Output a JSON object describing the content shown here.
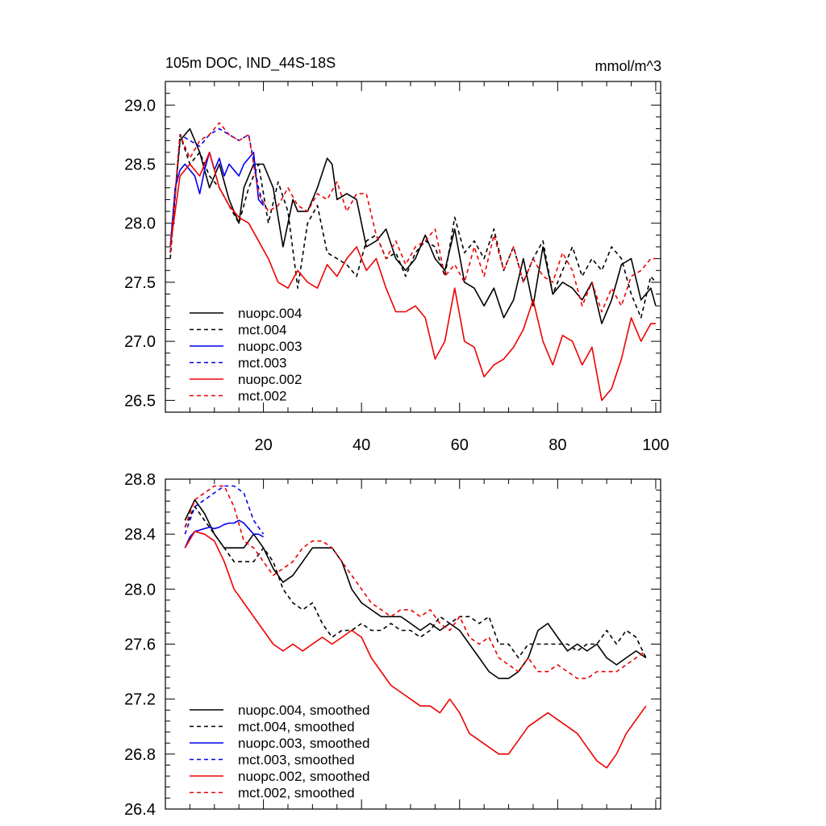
{
  "chart_data": [
    {
      "type": "line",
      "title": "105m DOC, IND_44S-18S",
      "units": "mmol/m^3",
      "xlim": [
        0,
        101
      ],
      "ylim": [
        26.4,
        29.2
      ],
      "yticks": [
        26.5,
        27.0,
        27.5,
        28.0,
        28.5,
        29.0
      ],
      "ytick_labels": [
        "26.5",
        "27.0",
        "27.5",
        "28.0",
        "28.5",
        "29.0"
      ],
      "xticks": [
        20,
        40,
        60,
        80,
        100
      ],
      "xtick_labels": [
        "20",
        "40",
        "60",
        "80",
        "100"
      ],
      "legend_position": "bottom-left",
      "series": [
        {
          "name": "nuopc.004",
          "color": "#000000",
          "dash": "solid",
          "x": [
            1,
            3,
            5,
            6,
            7,
            9,
            11,
            13,
            15,
            16,
            18,
            20,
            22,
            24,
            26,
            27,
            29,
            31,
            33,
            34,
            35,
            37,
            39,
            41,
            43,
            45,
            47,
            49,
            51,
            53,
            55,
            57,
            59,
            61,
            63,
            65,
            67,
            69,
            71,
            73,
            75,
            77,
            79,
            81,
            83,
            85,
            87,
            89,
            91,
            93,
            95,
            97,
            99,
            100
          ],
          "y": [
            27.8,
            28.7,
            28.8,
            28.7,
            28.6,
            28.3,
            28.5,
            28.2,
            28.0,
            28.3,
            28.5,
            28.5,
            28.3,
            27.8,
            28.2,
            28.1,
            28.1,
            28.3,
            28.55,
            28.5,
            28.2,
            28.25,
            28.2,
            27.8,
            27.85,
            27.95,
            27.7,
            27.6,
            27.7,
            27.9,
            27.7,
            27.6,
            27.95,
            27.5,
            27.45,
            27.3,
            27.45,
            27.2,
            27.35,
            27.7,
            27.3,
            27.8,
            27.4,
            27.5,
            27.45,
            27.35,
            27.5,
            27.15,
            27.35,
            27.65,
            27.7,
            27.35,
            27.45,
            27.3
          ]
        },
        {
          "name": "mct.004",
          "color": "#000000",
          "dash": "dashed",
          "x": [
            1,
            3,
            5,
            7,
            9,
            11,
            13,
            15,
            17,
            19,
            21,
            23,
            25,
            27,
            29,
            31,
            33,
            35,
            37,
            39,
            41,
            43,
            45,
            47,
            49,
            51,
            53,
            55,
            57,
            59,
            61,
            63,
            65,
            67,
            69,
            71,
            73,
            75,
            77,
            79,
            81,
            83,
            85,
            87,
            89,
            91,
            93,
            95,
            97,
            99,
            100
          ],
          "y": [
            27.7,
            28.75,
            28.5,
            28.6,
            28.4,
            28.3,
            28.15,
            28.0,
            28.3,
            28.5,
            28.0,
            28.35,
            28.1,
            27.45,
            28.0,
            28.15,
            27.75,
            27.7,
            27.65,
            27.55,
            27.85,
            27.9,
            27.7,
            27.75,
            27.55,
            27.75,
            27.85,
            27.8,
            27.55,
            28.05,
            27.75,
            27.85,
            27.7,
            27.95,
            27.6,
            27.8,
            27.5,
            27.7,
            27.85,
            27.4,
            27.6,
            27.8,
            27.55,
            27.7,
            27.6,
            27.8,
            27.7,
            27.4,
            27.2,
            27.55,
            27.5
          ]
        },
        {
          "name": "nuopc.003",
          "color": "#0000ee",
          "dash": "solid",
          "x": [
            1,
            2,
            3,
            4,
            5,
            6,
            7,
            8,
            9,
            10,
            11,
            12,
            13,
            14,
            15,
            16,
            17,
            18,
            19,
            20
          ],
          "y": [
            27.8,
            28.3,
            28.45,
            28.5,
            28.45,
            28.4,
            28.25,
            28.45,
            28.6,
            28.45,
            28.55,
            28.4,
            28.5,
            28.45,
            28.4,
            28.5,
            28.55,
            28.6,
            28.2,
            28.15
          ]
        },
        {
          "name": "mct.003",
          "color": "#0000ee",
          "dash": "dashed",
          "x": [
            1,
            3,
            5,
            7,
            9,
            11,
            13,
            15,
            17,
            19,
            20
          ],
          "y": [
            27.75,
            28.75,
            28.7,
            28.65,
            28.75,
            28.8,
            28.75,
            28.7,
            28.75,
            28.3,
            28.15
          ]
        },
        {
          "name": "nuopc.002",
          "color": "#ee0000",
          "dash": "solid",
          "x": [
            1,
            3,
            5,
            7,
            9,
            11,
            13,
            15,
            17,
            19,
            21,
            23,
            25,
            27,
            29,
            31,
            33,
            35,
            37,
            39,
            41,
            43,
            45,
            47,
            49,
            51,
            53,
            55,
            57,
            59,
            61,
            63,
            65,
            67,
            69,
            71,
            73,
            75,
            77,
            79,
            81,
            83,
            85,
            87,
            89,
            91,
            93,
            95,
            97,
            99,
            100
          ],
          "y": [
            27.8,
            28.4,
            28.5,
            28.4,
            28.6,
            28.3,
            28.15,
            28.05,
            28.0,
            27.85,
            27.7,
            27.5,
            27.45,
            27.6,
            27.5,
            27.45,
            27.65,
            27.55,
            27.7,
            27.8,
            27.6,
            27.7,
            27.45,
            27.25,
            27.25,
            27.3,
            27.2,
            26.85,
            27.0,
            27.45,
            27.0,
            26.95,
            26.7,
            26.8,
            26.85,
            26.95,
            27.1,
            27.35,
            27.0,
            26.8,
            27.05,
            27.0,
            26.8,
            26.95,
            26.5,
            26.6,
            26.85,
            27.2,
            27.0,
            27.15,
            27.15
          ]
        },
        {
          "name": "mct.002",
          "color": "#ee0000",
          "dash": "dashed",
          "x": [
            1,
            3,
            5,
            7,
            9,
            11,
            13,
            15,
            17,
            19,
            21,
            23,
            25,
            27,
            29,
            31,
            33,
            35,
            37,
            39,
            41,
            43,
            45,
            47,
            49,
            51,
            53,
            55,
            57,
            59,
            61,
            63,
            65,
            67,
            69,
            71,
            73,
            75,
            77,
            79,
            81,
            83,
            85,
            87,
            89,
            91,
            93,
            95,
            97,
            99,
            100
          ],
          "y": [
            27.75,
            28.75,
            28.55,
            28.7,
            28.75,
            28.85,
            28.75,
            28.7,
            28.75,
            28.25,
            28.1,
            28.15,
            28.3,
            28.15,
            28.1,
            28.25,
            28.2,
            28.35,
            28.1,
            28.25,
            28.25,
            27.9,
            27.7,
            27.85,
            27.65,
            27.8,
            27.85,
            27.95,
            27.55,
            27.65,
            27.5,
            27.8,
            27.55,
            27.9,
            27.6,
            27.8,
            27.5,
            27.7,
            27.55,
            27.5,
            27.75,
            27.6,
            27.3,
            27.5,
            27.25,
            27.45,
            27.3,
            27.55,
            27.6,
            27.7,
            27.7
          ]
        }
      ]
    },
    {
      "type": "line",
      "xlim": [
        0,
        101
      ],
      "ylim": [
        26.4,
        28.8
      ],
      "yticks": [
        26.4,
        26.8,
        27.2,
        27.6,
        28.0,
        28.4,
        28.8
      ],
      "ytick_labels": [
        "26.4",
        "26.8",
        "27.2",
        "27.6",
        "28.0",
        "28.4",
        "28.8"
      ],
      "xticks": [
        20,
        40,
        60,
        80,
        100
      ],
      "legend_position": "bottom-left",
      "series": [
        {
          "name": "nuopc.004, smoothed",
          "color": "#000000",
          "dash": "solid",
          "x": [
            4,
            6,
            8,
            10,
            12,
            14,
            16,
            18,
            20,
            22,
            24,
            26,
            28,
            30,
            32,
            34,
            36,
            38,
            40,
            42,
            44,
            46,
            48,
            50,
            52,
            54,
            56,
            58,
            60,
            62,
            64,
            66,
            68,
            70,
            72,
            74,
            76,
            78,
            80,
            82,
            84,
            86,
            88,
            90,
            92,
            94,
            96,
            98
          ],
          "y": [
            28.5,
            28.65,
            28.55,
            28.4,
            28.3,
            28.3,
            28.3,
            28.4,
            28.3,
            28.15,
            28.05,
            28.1,
            28.2,
            28.3,
            28.3,
            28.3,
            28.2,
            28.0,
            27.9,
            27.85,
            27.8,
            27.8,
            27.8,
            27.75,
            27.7,
            27.75,
            27.7,
            27.75,
            27.7,
            27.6,
            27.5,
            27.4,
            27.35,
            27.35,
            27.4,
            27.5,
            27.7,
            27.75,
            27.65,
            27.55,
            27.6,
            27.55,
            27.6,
            27.5,
            27.45,
            27.5,
            27.55,
            27.5
          ]
        },
        {
          "name": "mct.004, smoothed",
          "color": "#000000",
          "dash": "dashed",
          "x": [
            4,
            6,
            8,
            10,
            12,
            14,
            16,
            18,
            20,
            22,
            24,
            26,
            28,
            30,
            32,
            34,
            36,
            38,
            40,
            42,
            44,
            46,
            48,
            50,
            52,
            54,
            56,
            58,
            60,
            62,
            64,
            66,
            68,
            70,
            72,
            74,
            76,
            78,
            80,
            82,
            84,
            86,
            88,
            90,
            92,
            94,
            96,
            98
          ],
          "y": [
            28.45,
            28.6,
            28.5,
            28.4,
            28.3,
            28.2,
            28.2,
            28.2,
            28.3,
            28.2,
            28.0,
            27.9,
            27.85,
            27.9,
            27.75,
            27.65,
            27.7,
            27.7,
            27.75,
            27.7,
            27.7,
            27.75,
            27.7,
            27.7,
            27.65,
            27.7,
            27.8,
            27.75,
            27.8,
            27.8,
            27.75,
            27.8,
            27.6,
            27.6,
            27.5,
            27.6,
            27.6,
            27.6,
            27.6,
            27.6,
            27.55,
            27.6,
            27.6,
            27.7,
            27.6,
            27.7,
            27.65,
            27.5
          ]
        },
        {
          "name": "nuopc.003, smoothed",
          "color": "#0000ee",
          "dash": "solid",
          "x": [
            4,
            5,
            6,
            7,
            8,
            9,
            10,
            11,
            12,
            13,
            14,
            15,
            16,
            17,
            18,
            19,
            20
          ],
          "y": [
            28.3,
            28.38,
            28.42,
            28.43,
            28.44,
            28.45,
            28.44,
            28.45,
            28.47,
            28.48,
            28.48,
            28.5,
            28.48,
            28.44,
            28.4,
            28.4,
            28.38
          ]
        },
        {
          "name": "mct.003, smoothed",
          "color": "#0000ee",
          "dash": "dashed",
          "x": [
            4,
            6,
            8,
            10,
            12,
            14,
            16,
            18,
            20
          ],
          "y": [
            28.4,
            28.6,
            28.65,
            28.7,
            28.75,
            28.75,
            28.7,
            28.5,
            28.4
          ]
        },
        {
          "name": "nuopc.002, smoothed",
          "color": "#ee0000",
          "dash": "solid",
          "x": [
            4,
            6,
            8,
            10,
            12,
            14,
            16,
            18,
            20,
            22,
            24,
            26,
            28,
            30,
            32,
            34,
            36,
            38,
            40,
            42,
            44,
            46,
            48,
            50,
            52,
            54,
            56,
            58,
            60,
            62,
            64,
            66,
            68,
            70,
            72,
            74,
            76,
            78,
            80,
            82,
            84,
            86,
            88,
            90,
            92,
            94,
            96,
            98
          ],
          "y": [
            28.3,
            28.42,
            28.4,
            28.35,
            28.2,
            28.0,
            27.9,
            27.8,
            27.7,
            27.6,
            27.55,
            27.6,
            27.55,
            27.6,
            27.65,
            27.6,
            27.65,
            27.7,
            27.65,
            27.5,
            27.4,
            27.3,
            27.25,
            27.2,
            27.15,
            27.15,
            27.1,
            27.2,
            27.1,
            26.95,
            26.9,
            26.85,
            26.8,
            26.8,
            26.9,
            27.0,
            27.05,
            27.1,
            27.05,
            27.0,
            26.95,
            26.85,
            26.75,
            26.7,
            26.8,
            26.95,
            27.05,
            27.15
          ]
        },
        {
          "name": "mct.002, smoothed",
          "color": "#ee0000",
          "dash": "dashed",
          "x": [
            4,
            6,
            8,
            10,
            12,
            14,
            16,
            18,
            20,
            22,
            24,
            26,
            28,
            30,
            32,
            34,
            36,
            38,
            40,
            42,
            44,
            46,
            48,
            50,
            52,
            54,
            56,
            58,
            60,
            62,
            64,
            66,
            68,
            70,
            72,
            74,
            76,
            78,
            80,
            82,
            84,
            86,
            88,
            90,
            92,
            94,
            96,
            98
          ],
          "y": [
            28.45,
            28.65,
            28.7,
            28.75,
            28.75,
            28.6,
            28.35,
            28.3,
            28.2,
            28.1,
            28.15,
            28.2,
            28.3,
            28.35,
            28.35,
            28.3,
            28.2,
            28.1,
            28.0,
            27.9,
            27.85,
            27.8,
            27.85,
            27.85,
            27.8,
            27.85,
            27.75,
            27.7,
            27.8,
            27.65,
            27.6,
            27.65,
            27.5,
            27.45,
            27.4,
            27.5,
            27.4,
            27.4,
            27.45,
            27.4,
            27.35,
            27.35,
            27.4,
            27.4,
            27.4,
            27.45,
            27.5,
            27.55
          ]
        }
      ]
    }
  ]
}
